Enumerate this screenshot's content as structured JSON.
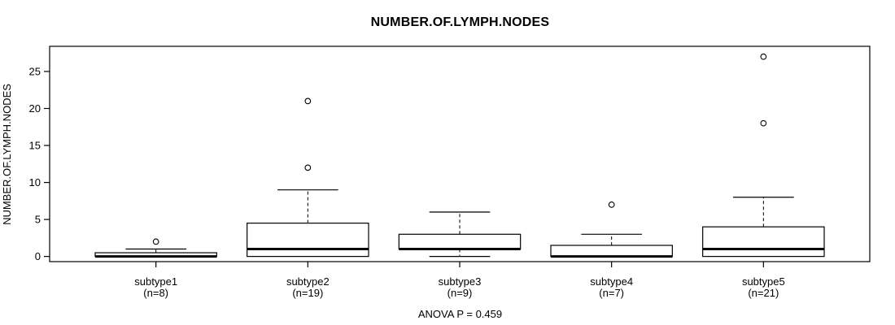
{
  "title": "NUMBER.OF.LYMPH.NODES",
  "y_axis_label": "NUMBER.OF.LYMPH.NODES",
  "footer_annotation": "ANOVA P = 0.459",
  "colors": {
    "background": "#ffffff",
    "stroke": "#000000",
    "box_fill": "#ffffff"
  },
  "chart_data": {
    "type": "boxplot",
    "title": "NUMBER.OF.LYMPH.NODES",
    "ylabel": "NUMBER.OF.LYMPH.NODES",
    "annotation": "ANOVA P = 0.459",
    "y_ticks": [
      0,
      5,
      10,
      15,
      20,
      25
    ],
    "ylim": [
      -0.7,
      28.4
    ],
    "grid": false,
    "groups": [
      {
        "label": "subtype1",
        "n_label": "(n=8)",
        "n": 8,
        "whisker_low": 0,
        "q1": 0,
        "median": 0,
        "q3": 0.5,
        "whisker_high": 1,
        "outliers": [
          2
        ]
      },
      {
        "label": "subtype2",
        "n_label": "(n=19)",
        "n": 19,
        "whisker_low": 0,
        "q1": 0,
        "median": 1,
        "q3": 4.5,
        "whisker_high": 9,
        "outliers": [
          12,
          21
        ]
      },
      {
        "label": "subtype3",
        "n_label": "(n=9)",
        "n": 9,
        "whisker_low": 0,
        "q1": 1,
        "median": 1,
        "q3": 3,
        "whisker_high": 6,
        "outliers": []
      },
      {
        "label": "subtype4",
        "n_label": "(n=7)",
        "n": 7,
        "whisker_low": 0,
        "q1": 0,
        "median": 0,
        "q3": 1.5,
        "whisker_high": 3,
        "outliers": [
          7
        ]
      },
      {
        "label": "subtype5",
        "n_label": "(n=21)",
        "n": 21,
        "whisker_low": 0,
        "q1": 0,
        "median": 1,
        "q3": 4,
        "whisker_high": 8,
        "outliers": [
          18,
          27
        ]
      }
    ]
  }
}
